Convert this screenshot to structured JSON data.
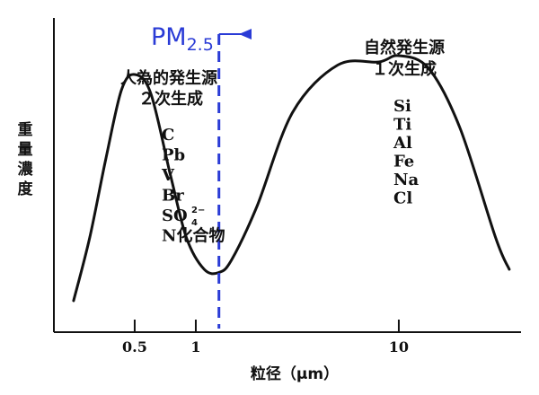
{
  "chart_data": {
    "type": "line",
    "title": "",
    "ylabel": "重量濃度",
    "xlabel": "粒径（μm）",
    "x_scale": "log",
    "xlim": [
      0.2,
      40
    ],
    "ticks": [
      {
        "value": 0.5,
        "label": "0.5"
      },
      {
        "value": 1,
        "label": "1"
      },
      {
        "value": 10,
        "label": "10"
      }
    ],
    "series": [
      {
        "x": [
          0.25,
          0.3,
          0.36,
          0.43,
          0.5,
          0.6,
          0.75,
          0.9,
          1.1,
          1.3,
          1.5,
          2,
          3,
          5,
          8,
          10,
          14,
          20,
          30,
          35
        ],
        "y": [
          0.1,
          0.3,
          0.55,
          0.77,
          0.82,
          0.76,
          0.5,
          0.3,
          0.2,
          0.19,
          0.23,
          0.4,
          0.7,
          0.85,
          0.86,
          0.88,
          0.84,
          0.65,
          0.3,
          0.2
        ]
      }
    ],
    "cutoff": {
      "x": 1.3,
      "label_main": "PM",
      "label_sub": "2.5",
      "color": "#2a3bd6"
    },
    "annotations": {
      "left_title": [
        "人為的発生源",
        "２次生成"
      ],
      "left_items": [
        "C",
        "Pb",
        "V",
        "Br",
        "SO",
        "N化合物"
      ],
      "left_sulfate_sup": "2−",
      "left_sulfate_sub": "4",
      "right_title": [
        "自然発生源",
        "１次生成"
      ],
      "right_items": [
        "Si",
        "Ti",
        "Al",
        "Fe",
        "Na",
        "Cl"
      ]
    }
  }
}
